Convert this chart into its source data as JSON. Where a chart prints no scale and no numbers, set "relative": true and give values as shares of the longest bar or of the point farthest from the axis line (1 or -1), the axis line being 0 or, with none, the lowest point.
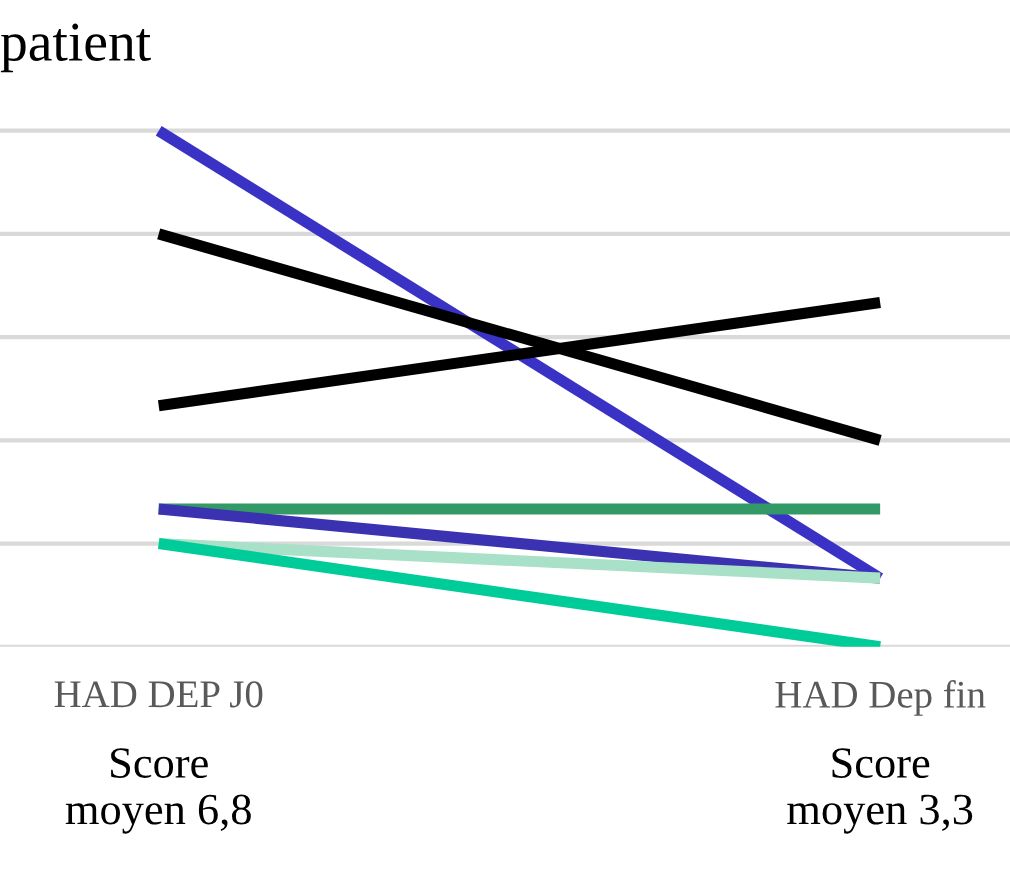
{
  "chart_data": {
    "type": "line",
    "title": "patient",
    "relative": true,
    "grid": "y",
    "legend": false,
    "marker": "none",
    "line_style": "solid",
    "categories": [
      "HAD DEP J0",
      "HAD Dep fin"
    ],
    "series": [
      {
        "color": "#3a32c4",
        "values": [
          1,
          0.133
        ]
      },
      {
        "color": "#000000",
        "values": [
          0.8,
          0.4
        ]
      },
      {
        "color": "#000000",
        "values": [
          0.467,
          0.667
        ]
      },
      {
        "color": "#339966",
        "values": [
          0.267,
          0.267
        ]
      },
      {
        "color": "#3a32b0",
        "values": [
          0.267,
          0.133
        ]
      },
      {
        "color": "#a8e0c8",
        "values": [
          0.2,
          0.133
        ]
      },
      {
        "color": "#00cc99",
        "values": [
          0.2,
          0
        ]
      }
    ],
    "annotations": [
      "Score\nmoyen 6,8",
      "Score\nmoyen 3,3"
    ]
  }
}
